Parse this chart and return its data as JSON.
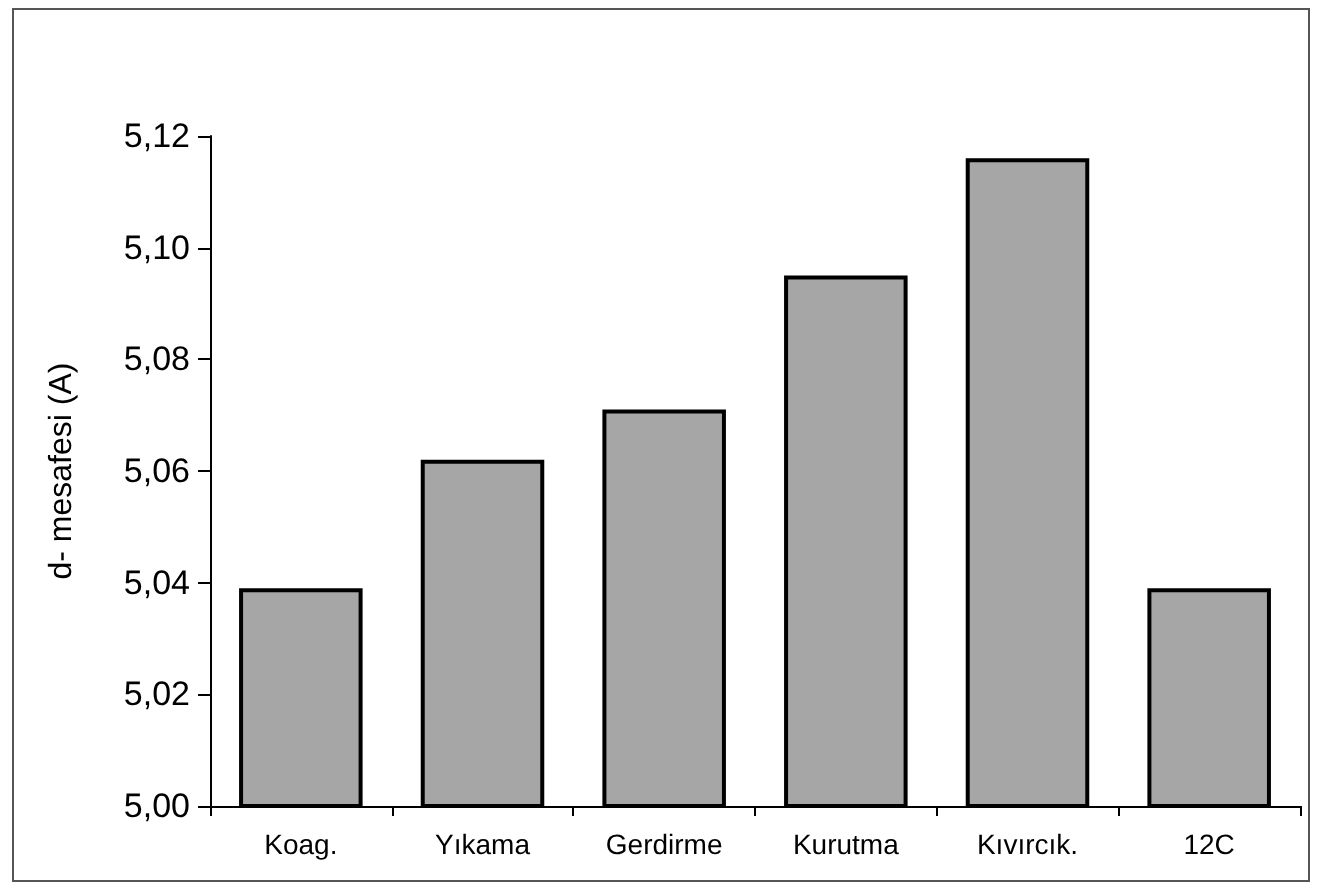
{
  "chart_data": {
    "type": "bar",
    "ylabel": "d- mesafesi (A)",
    "categories": [
      "Koag.",
      "Yıkama",
      "Gerdirme",
      "Kurutma",
      "Kıvırcık.",
      "12C"
    ],
    "values": [
      5.039,
      5.062,
      5.071,
      5.095,
      5.116,
      5.039
    ],
    "color": "#a6a6a6",
    "ylim": [
      5.0,
      5.12
    ],
    "yticks": [
      {
        "value": 5.0,
        "label": "5,00"
      },
      {
        "value": 5.02,
        "label": "5,02"
      },
      {
        "value": 5.04,
        "label": "5,04"
      },
      {
        "value": 5.06,
        "label": "5,06"
      },
      {
        "value": 5.08,
        "label": "5,08"
      },
      {
        "value": 5.1,
        "label": "5,10"
      },
      {
        "value": 5.12,
        "label": "5,12"
      }
    ],
    "grid": false
  }
}
